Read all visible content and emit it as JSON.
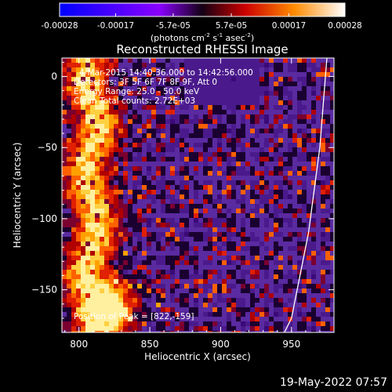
{
  "colorbar": {
    "ticks": [
      "-0.00028",
      "-0.00017",
      "-5.7e-05",
      "5.7e-05",
      "0.00017",
      "0.00028"
    ],
    "tick_values": [
      -0.00028,
      -0.00017,
      -5.7e-05,
      5.7e-05,
      0.00017,
      0.00028
    ],
    "range": [
      -0.00028,
      0.00028
    ],
    "unit_main": "(photons cm",
    "unit_exp1": "-2",
    "unit_mid": " s",
    "unit_exp2": "-1",
    "unit_end": " asec",
    "unit_exp3": "-2",
    "unit_close": ")"
  },
  "chart_data": {
    "type": "heatmap",
    "title": "Reconstructed RHESSI Image",
    "xlabel": "Heliocentric X (arcsec)",
    "ylabel": "Heliocentric Y (arcsec)",
    "xlim": [
      788,
      980
    ],
    "ylim": [
      -180,
      13
    ],
    "xticks": [
      800,
      850,
      900,
      950
    ],
    "yticks": [
      0,
      -50,
      -100,
      -150
    ],
    "xtick_labels": [
      "800",
      "850",
      "900",
      "950"
    ],
    "ytick_labels": [
      "0",
      "−50",
      "−100",
      "−150"
    ],
    "peak": [
      822,
      -159
    ],
    "limb_points": [
      [
        975,
        13
      ],
      [
        970,
        -50
      ],
      [
        962,
        -110
      ],
      [
        950,
        -170
      ],
      [
        945,
        -180
      ]
    ],
    "annotations": [
      "4-Mar-2015 14:40:36.000 to 14:42:56.000",
      "Detectors: 3F 5F 6F 7F 8F 9F, Att 0",
      "Energy Range: 25.0 - 50.0 keV",
      "Clean    Total counts: 2.72E+03"
    ],
    "peak_label": "Position of Peak = [822,-159]"
  },
  "footer_date": "19-May-2022 07:57"
}
